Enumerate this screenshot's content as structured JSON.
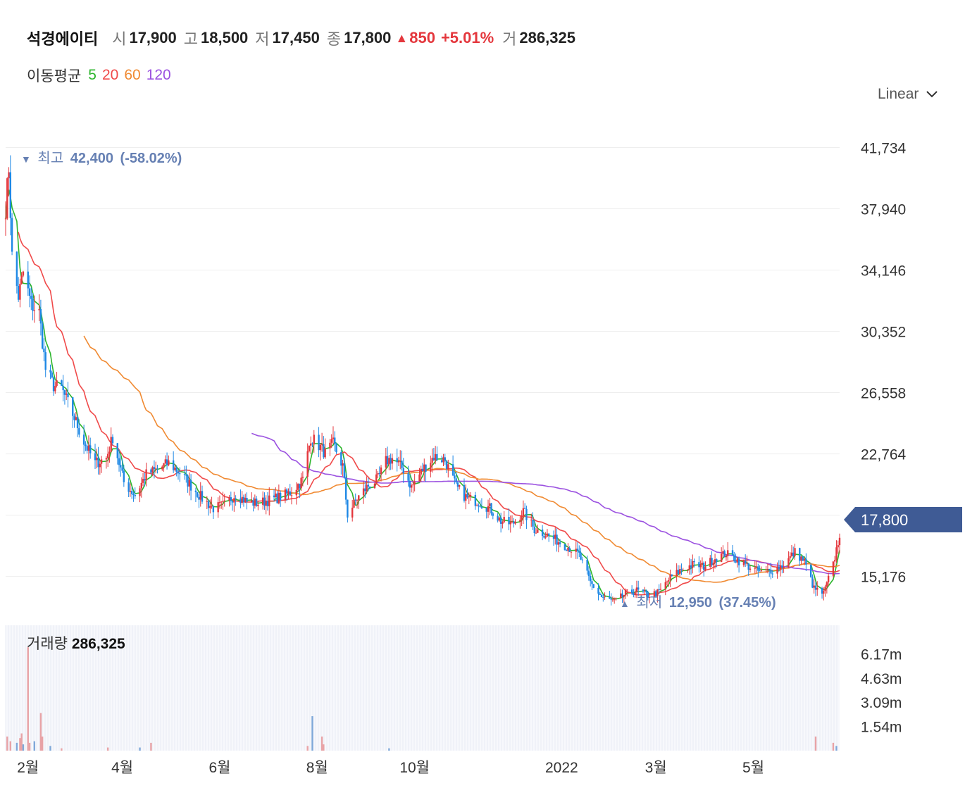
{
  "header": {
    "name": "석경에이티",
    "open_label": "시",
    "open": "17,900",
    "high_label": "고",
    "high": "18,500",
    "low_label": "저",
    "low": "17,450",
    "close_label": "종",
    "close": "17,800",
    "change_arrow": "▲",
    "change": "850",
    "change_pct": "+5.01%",
    "volume_label": "거",
    "volume": "286,325"
  },
  "moving_average": {
    "label": "이동평균",
    "periods": [
      {
        "period": "5",
        "color": "#2db52d"
      },
      {
        "period": "20",
        "color": "#f04a4a"
      },
      {
        "period": "60",
        "color": "#f08a32"
      },
      {
        "period": "120",
        "color": "#9b51e0"
      }
    ]
  },
  "scale_selector": {
    "label": "Linear",
    "icon": "chevron-down-icon"
  },
  "colors": {
    "up": "#e4373d",
    "down": "#1e88e5",
    "current_tag": "#3f5b95",
    "annotation": "#6680b3"
  },
  "annotations": {
    "high": {
      "arrow": "▼",
      "label": "최고",
      "value": "42,400",
      "pct": "(-58.02%)"
    },
    "low": {
      "arrow": "▲",
      "label": "최저",
      "value": "12,950",
      "pct": "(37.45%)"
    }
  },
  "current_price_tag": "17,800",
  "volume_panel": {
    "label": "거래량",
    "value": "286,325"
  },
  "chart_data": {
    "type": "candlestick",
    "y_ticks": [
      "41,734",
      "37,940",
      "34,146",
      "30,352",
      "26,558",
      "22,764",
      "18,970",
      "15,176"
    ],
    "y_tick_values": [
      41734,
      37940,
      34146,
      30352,
      26558,
      22764,
      18970,
      15176
    ],
    "ylim": [
      12500,
      42800
    ],
    "x_ticks": [
      "2월",
      "4월",
      "6월",
      "8월",
      "10월",
      "2022",
      "3월",
      "5월"
    ],
    "x_tick_dates": [
      "2021-02-01",
      "2021-04-01",
      "2021-06-01",
      "2021-08-01",
      "2021-10-01",
      "2022-01-01",
      "2022-03-01",
      "2022-05-01"
    ],
    "x_range": [
      "2021-01-18",
      "2022-06-24"
    ],
    "volume_ticks": [
      "6.17m",
      "4.63m",
      "3.09m",
      "1.54m"
    ],
    "volume_tick_values": [
      6.17,
      4.63,
      3.09,
      1.54
    ],
    "volume_ylim": [
      0,
      8.0
    ],
    "grid": true,
    "price_path": [
      [
        "2021-01-18",
        38000
      ],
      [
        "2021-01-20",
        40500
      ],
      [
        "2021-01-22",
        35000
      ],
      [
        "2021-01-26",
        32500
      ],
      [
        "2021-01-29",
        34000
      ],
      [
        "2021-02-03",
        32000
      ],
      [
        "2021-02-08",
        31500
      ],
      [
        "2021-02-12",
        28000
      ],
      [
        "2021-02-17",
        27000
      ],
      [
        "2021-02-22",
        26800
      ],
      [
        "2021-03-02",
        25000
      ],
      [
        "2021-03-08",
        23500
      ],
      [
        "2021-03-15",
        22200
      ],
      [
        "2021-03-22",
        22500
      ],
      [
        "2021-03-26",
        23800
      ],
      [
        "2021-04-02",
        21000
      ],
      [
        "2021-04-09",
        20200
      ],
      [
        "2021-04-16",
        21500
      ],
      [
        "2021-04-23",
        21800
      ],
      [
        "2021-04-30",
        22200
      ],
      [
        "2021-05-07",
        21600
      ],
      [
        "2021-05-14",
        20800
      ],
      [
        "2021-05-21",
        20000
      ],
      [
        "2021-05-28",
        19400
      ],
      [
        "2021-06-04",
        19600
      ],
      [
        "2021-06-11",
        20300
      ],
      [
        "2021-06-18",
        19800
      ],
      [
        "2021-06-25",
        19700
      ],
      [
        "2021-07-02",
        19900
      ],
      [
        "2021-07-09",
        20100
      ],
      [
        "2021-07-16",
        20400
      ],
      [
        "2021-07-23",
        21200
      ],
      [
        "2021-07-28",
        23800
      ],
      [
        "2021-08-02",
        23300
      ],
      [
        "2021-08-06",
        22800
      ],
      [
        "2021-08-11",
        23400
      ],
      [
        "2021-08-17",
        22000
      ],
      [
        "2021-08-20",
        19000
      ],
      [
        "2021-08-26",
        20000
      ],
      [
        "2021-09-02",
        20800
      ],
      [
        "2021-09-08",
        21200
      ],
      [
        "2021-09-13",
        22300
      ],
      [
        "2021-09-17",
        22500
      ],
      [
        "2021-09-24",
        21800
      ],
      [
        "2021-09-29",
        20700
      ],
      [
        "2021-10-06",
        21800
      ],
      [
        "2021-10-13",
        22600
      ],
      [
        "2021-10-20",
        22400
      ],
      [
        "2021-10-27",
        20700
      ],
      [
        "2021-11-03",
        20000
      ],
      [
        "2021-11-10",
        19800
      ],
      [
        "2021-11-17",
        19400
      ],
      [
        "2021-11-24",
        18600
      ],
      [
        "2021-12-01",
        18400
      ],
      [
        "2021-12-08",
        19200
      ],
      [
        "2021-12-15",
        18100
      ],
      [
        "2021-12-22",
        17800
      ],
      [
        "2021-12-29",
        17400
      ],
      [
        "2022-01-05",
        17000
      ],
      [
        "2022-01-12",
        16500
      ],
      [
        "2022-01-19",
        14800
      ],
      [
        "2022-01-26",
        13900
      ],
      [
        "2022-02-03",
        13600
      ],
      [
        "2022-02-10",
        14100
      ],
      [
        "2022-02-17",
        14300
      ],
      [
        "2022-02-24",
        14000
      ],
      [
        "2022-03-03",
        14200
      ],
      [
        "2022-03-10",
        15100
      ],
      [
        "2022-03-17",
        15600
      ],
      [
        "2022-03-24",
        15900
      ],
      [
        "2022-03-31",
        15800
      ],
      [
        "2022-04-07",
        16300
      ],
      [
        "2022-04-14",
        16600
      ],
      [
        "2022-04-21",
        16200
      ],
      [
        "2022-04-28",
        15800
      ],
      [
        "2022-05-06",
        15400
      ],
      [
        "2022-05-13",
        15600
      ],
      [
        "2022-05-20",
        15900
      ],
      [
        "2022-05-27",
        16700
      ],
      [
        "2022-06-02",
        16100
      ],
      [
        "2022-06-08",
        14400
      ],
      [
        "2022-06-14",
        14100
      ],
      [
        "2022-06-20",
        15900
      ],
      [
        "2022-06-24",
        17800
      ]
    ],
    "ma_start_dates": {
      "5": "2021-01-18",
      "20": "2021-01-26",
      "60": "2021-03-08",
      "120": "2021-06-21"
    },
    "volume_bars": [
      [
        "2021-01-19",
        0.9
      ],
      [
        "2021-01-21",
        0.6
      ],
      [
        "2021-01-25",
        0.5
      ],
      [
        "2021-01-27",
        0.8
      ],
      [
        "2021-01-28",
        1.1
      ],
      [
        "2021-01-29",
        0.4
      ],
      [
        "2021-02-01",
        6.6
      ],
      [
        "2021-02-02",
        0.5
      ],
      [
        "2021-02-05",
        0.6
      ],
      [
        "2021-02-09",
        2.4
      ],
      [
        "2021-02-10",
        0.9
      ],
      [
        "2021-02-15",
        0.3
      ],
      [
        "2021-02-22",
        0.15
      ],
      [
        "2021-03-23",
        0.2
      ],
      [
        "2021-04-12",
        0.2
      ],
      [
        "2021-04-19",
        0.5
      ],
      [
        "2021-07-26",
        0.3
      ],
      [
        "2021-07-29",
        2.2
      ],
      [
        "2021-08-04",
        0.9
      ],
      [
        "2021-08-05",
        0.4
      ],
      [
        "2021-09-15",
        0.15
      ],
      [
        "2022-06-09",
        0.9
      ],
      [
        "2022-06-20",
        0.5
      ],
      [
        "2022-06-22",
        0.3
      ]
    ]
  }
}
